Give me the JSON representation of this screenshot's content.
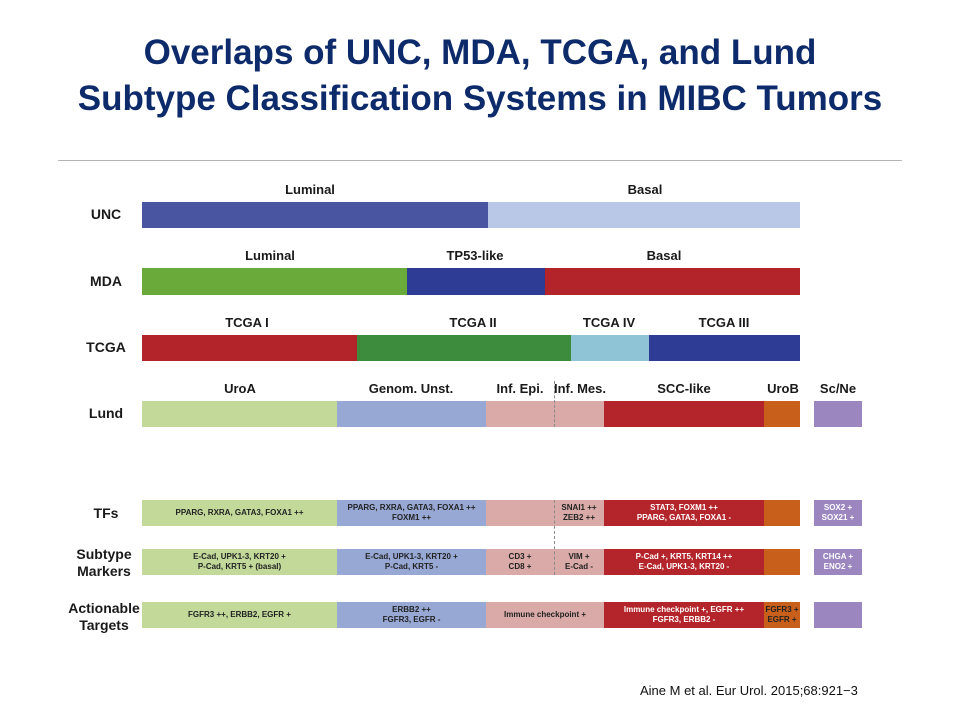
{
  "title": {
    "line1": "Overlaps of UNC, MDA, TCGA, and Lund",
    "line2": "Subtype Classification Systems in MIBC Tumors"
  },
  "rows": {
    "unc": "UNC",
    "mda": "MDA",
    "tcga": "TCGA",
    "lund": "Lund",
    "tfs": "TFs",
    "subtype_markers_1": "Subtype",
    "subtype_markers_2": "Markers",
    "actionable_1": "Actionable",
    "actionable_2": "Targets"
  },
  "unc": {
    "luminal": "Luminal",
    "basal": "Basal"
  },
  "mda": {
    "luminal": "Luminal",
    "tp53": "TP53-like",
    "basal": "Basal"
  },
  "tcga": {
    "i": "TCGA I",
    "ii": "TCGA II",
    "iv": "TCGA IV",
    "iii": "TCGA III"
  },
  "lund": {
    "uroa": "UroA",
    "genom": "Genom. Unst.",
    "infepi": "Inf. Epi.",
    "infmes": "Inf. Mes.",
    "scc": "SCC-like",
    "urob": "UroB",
    "scne": "Sc/Ne"
  },
  "tfs": {
    "uroa": [
      "PPARG, RXRA, GATA3, FOXA1 ++"
    ],
    "genom": [
      "PPARG, RXRA, GATA3, FOXA1 ++",
      "FOXM1 ++"
    ],
    "infepi": [],
    "infmes": [
      "SNAI1 ++",
      "ZEB2 ++"
    ],
    "scc": [
      "STAT3, FOXM1 ++",
      "PPARG, GATA3, FOXA1 -"
    ],
    "urob": [],
    "scne": [
      "SOX2 +",
      "SOX21 +"
    ]
  },
  "markers": {
    "uroa": [
      "E-Cad, UPK1-3, KRT20 +",
      "P-Cad, KRT5 + (basal)"
    ],
    "genom": [
      "E-Cad, UPK1-3, KRT20 +",
      "P-Cad, KRT5 -"
    ],
    "infepi": [
      "CD3 +",
      "CD8 +"
    ],
    "infmes": [
      "VIM +",
      "E-Cad -"
    ],
    "scc": [
      "P-Cad +, KRT5, KRT14 ++",
      "E-Cad, UPK1-3, KRT20 -"
    ],
    "urob": [],
    "scne": [
      "CHGA +",
      "ENO2 +"
    ]
  },
  "targets": {
    "uroa": [
      "FGFR3 ++, ERBB2, EGFR +"
    ],
    "genom": [
      "ERBB2 ++",
      "FGFR3, EGFR -"
    ],
    "inf": [
      "Immune checkpoint +"
    ],
    "scc": [
      "Immune checkpoint +, EGFR ++",
      "FGFR3, ERBB2 -"
    ],
    "urob": [
      "FGFR3 +",
      "EGFR +"
    ],
    "scne": []
  },
  "colors": {
    "unc_luminal": "#4a55a2",
    "unc_basal": "#b9c8e6",
    "green": "#6aaa3a",
    "navy": "#2e3c96",
    "red": "#b2242a",
    "tcga_green": "#3d8b3d",
    "tcga_light_blue": "#8ec4d6",
    "uroa": "#c2d99a",
    "genom": "#98a8d4",
    "inf": "#d9aaa7",
    "scc": "#b3252b",
    "urob": "#c8601c",
    "scne": "#9b86c0"
  },
  "citation": "Aine M et al. Eur Urol. 2015;68:921−3"
}
